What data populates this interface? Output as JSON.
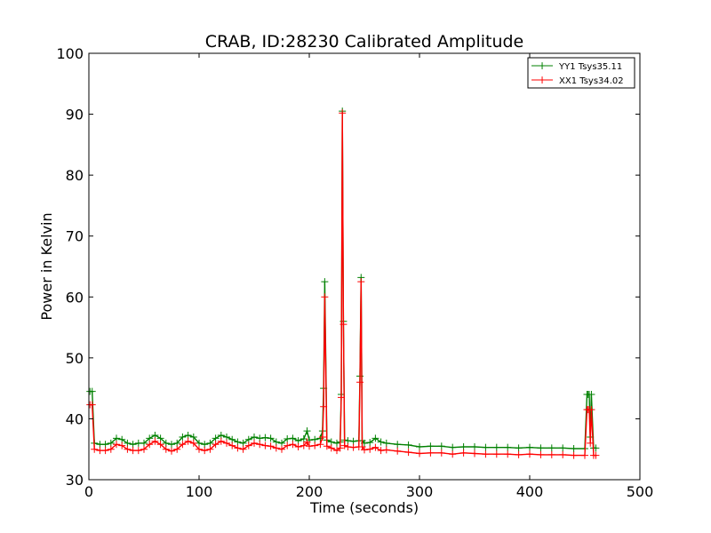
{
  "chart_data": {
    "type": "line",
    "title": "CRAB, ID:28230 Calibrated Amplitude",
    "xlabel": "Time (seconds)",
    "ylabel": "Power in Kelvin",
    "xlim": [
      0,
      500
    ],
    "ylim": [
      30,
      100
    ],
    "xticks": [
      "0",
      "100",
      "200",
      "300",
      "400",
      "500"
    ],
    "yticks": [
      "30",
      "40",
      "50",
      "60",
      "70",
      "80",
      "90",
      "100"
    ],
    "grid": false,
    "legend_position": "top-right",
    "colors": {
      "YY1": "#008000",
      "XX1": "#ff0000"
    },
    "series": [
      {
        "name": "YY1 Tsys35.11",
        "color": "#008000",
        "x": [
          1,
          3,
          5,
          10,
          15,
          20,
          25,
          30,
          35,
          40,
          45,
          50,
          55,
          60,
          65,
          70,
          75,
          80,
          85,
          90,
          95,
          100,
          105,
          110,
          115,
          120,
          125,
          130,
          135,
          140,
          145,
          150,
          155,
          160,
          165,
          170,
          175,
          180,
          185,
          190,
          195,
          198,
          200,
          205,
          210,
          212,
          213,
          214,
          216,
          220,
          225,
          228,
          229,
          230,
          231,
          232,
          235,
          240,
          245,
          246,
          247,
          248,
          250,
          255,
          260,
          265,
          270,
          280,
          290,
          300,
          310,
          320,
          330,
          340,
          350,
          360,
          370,
          380,
          390,
          400,
          410,
          420,
          430,
          440,
          450,
          452,
          453,
          454,
          455,
          456,
          458,
          460
        ],
        "y": [
          44.5,
          44.5,
          36,
          35.8,
          35.8,
          36,
          36.8,
          36.6,
          36,
          35.8,
          36,
          36,
          36.8,
          37.3,
          36.8,
          36,
          35.8,
          36,
          37,
          37.3,
          37,
          36,
          35.8,
          36,
          36.8,
          37.3,
          37,
          36.6,
          36.2,
          36,
          36.6,
          37,
          36.8,
          36.9,
          36.8,
          36.2,
          36,
          36.7,
          36.8,
          36.4,
          36.7,
          38,
          36.5,
          36.6,
          36.8,
          38,
          45,
          62.5,
          36.5,
          36.2,
          36.0,
          36.2,
          44,
          90.5,
          56,
          36.5,
          36.4,
          36.3,
          36.4,
          47,
          63.2,
          36.4,
          36.0,
          36.1,
          36.8,
          36.2,
          36.0,
          35.8,
          35.7,
          35.4,
          35.5,
          35.5,
          35.3,
          35.4,
          35.4,
          35.3,
          35.3,
          35.3,
          35.2,
          35.3,
          35.2,
          35.2,
          35.2,
          35.1,
          35.1,
          44,
          44,
          44,
          37,
          44,
          35.2,
          35.2
        ]
      },
      {
        "name": "XX1 Tsys34.02",
        "color": "#ff0000",
        "x": [
          1,
          3,
          5,
          10,
          15,
          20,
          25,
          30,
          35,
          40,
          45,
          50,
          55,
          60,
          65,
          70,
          75,
          80,
          85,
          90,
          95,
          100,
          105,
          110,
          115,
          120,
          125,
          130,
          135,
          140,
          145,
          150,
          155,
          160,
          165,
          170,
          175,
          180,
          185,
          190,
          195,
          198,
          200,
          205,
          210,
          212,
          213,
          214,
          216,
          220,
          225,
          228,
          229,
          230,
          231,
          232,
          235,
          240,
          245,
          246,
          247,
          248,
          250,
          255,
          260,
          265,
          270,
          280,
          290,
          300,
          310,
          320,
          330,
          340,
          350,
          360,
          370,
          380,
          390,
          400,
          410,
          420,
          430,
          440,
          450,
          452,
          453,
          454,
          455,
          456,
          458,
          460
        ],
        "y": [
          42.3,
          42.3,
          35,
          34.8,
          34.8,
          35,
          35.8,
          35.6,
          35,
          34.8,
          34.8,
          35,
          35.8,
          36.3,
          35.8,
          35,
          34.7,
          35,
          35.8,
          36.3,
          36,
          35,
          34.8,
          35,
          35.8,
          36.3,
          36,
          35.6,
          35.2,
          35,
          35.6,
          36,
          35.8,
          35.6,
          35.5,
          35.2,
          35,
          35.6,
          35.8,
          35.4,
          35.6,
          36.2,
          35.5,
          35.6,
          35.8,
          37,
          42,
          60,
          35.5,
          35.2,
          34.8,
          35.2,
          43.5,
          90.2,
          55.5,
          35.6,
          35.4,
          35.3,
          35.4,
          46,
          62.5,
          35.4,
          34.9,
          35.0,
          35.3,
          34.8,
          34.9,
          34.7,
          34.5,
          34.3,
          34.4,
          34.4,
          34.2,
          34.4,
          34.3,
          34.2,
          34.2,
          34.2,
          34.1,
          34.2,
          34.1,
          34.1,
          34.1,
          34.0,
          34.0,
          41.5,
          41.5,
          41.5,
          36,
          41.5,
          34.0,
          34.0
        ]
      }
    ]
  }
}
